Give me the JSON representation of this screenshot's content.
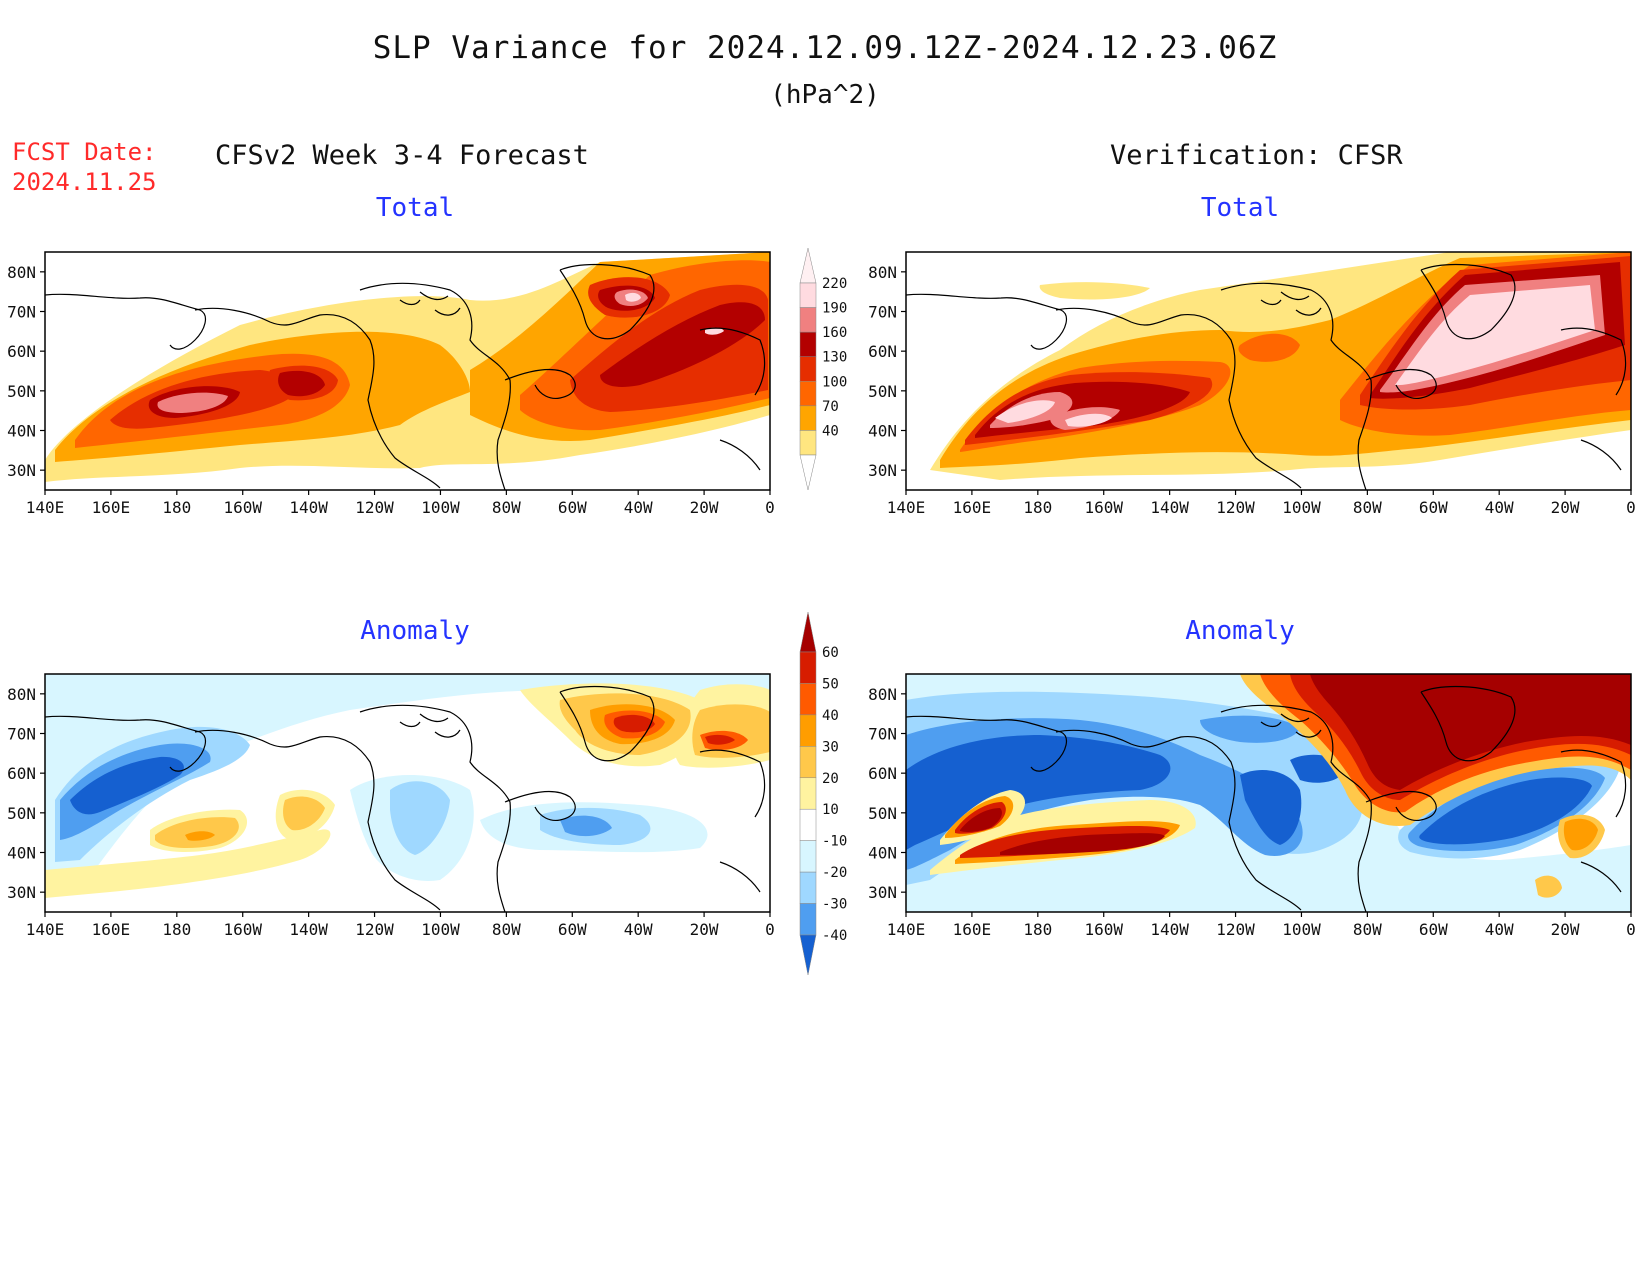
{
  "header": {
    "title": "SLP Variance for 2024.12.09.12Z-2024.12.23.06Z",
    "units": "(hPa^2)",
    "fcst_label_line1": "FCST Date:",
    "fcst_label_line2": "2024.11.25",
    "left_column": "CFSv2 Week 3-4 Forecast",
    "right_column": "Verification: CFSR"
  },
  "panels": {
    "top_left_title": "Total",
    "top_right_title": "Total",
    "bottom_left_title": "Anomaly",
    "bottom_right_title": "Anomaly"
  },
  "axes": {
    "lon_ticks": [
      "140E",
      "160E",
      "180",
      "160W",
      "140W",
      "120W",
      "100W",
      "80W",
      "60W",
      "40W",
      "20W",
      "0"
    ],
    "lat_ticks": [
      "80N",
      "70N",
      "60N",
      "50N",
      "40N",
      "30N"
    ]
  },
  "colorbar_total": {
    "levels": [
      "40",
      "70",
      "100",
      "130",
      "160",
      "190",
      "220"
    ],
    "colors": [
      "#ffe680",
      "#ffa500",
      "#ff6600",
      "#e62e00",
      "#b30000",
      "#f08080",
      "#ffdbe0"
    ]
  },
  "colorbar_anomaly": {
    "levels": [
      "60",
      "50",
      "40",
      "30",
      "20",
      "10",
      "-10",
      "-20",
      "-30",
      "-40"
    ],
    "colors": [
      "#a50000",
      "#d71c00",
      "#ff5a00",
      "#ff9d00",
      "#ffc84a",
      "#fff3a0",
      "#ffffff",
      "#d8f6ff",
      "#9fd8ff",
      "#4f9ef0",
      "#1560d0"
    ]
  }
}
